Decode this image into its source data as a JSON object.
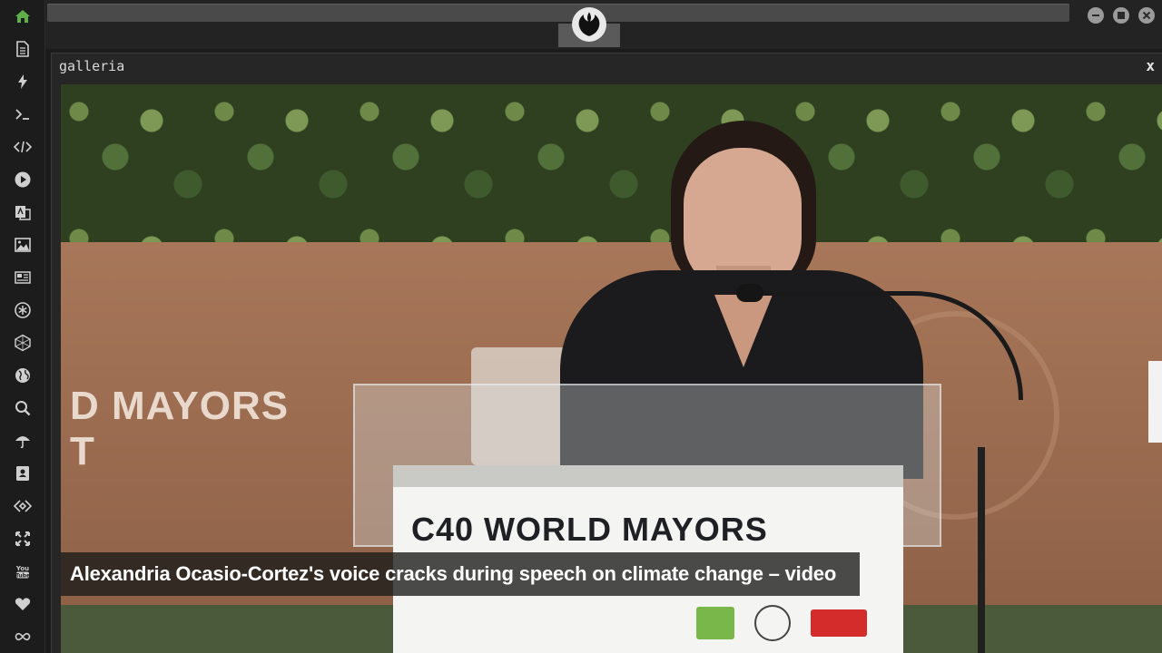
{
  "app": {
    "sidebar": {
      "items": [
        {
          "icon": "home-icon",
          "color": "#5fb04a"
        },
        {
          "icon": "document-icon"
        },
        {
          "icon": "lightning-icon"
        },
        {
          "icon": "terminal-icon"
        },
        {
          "icon": "code-icon"
        },
        {
          "icon": "play-icon"
        },
        {
          "icon": "translate-icon"
        },
        {
          "icon": "image-icon"
        },
        {
          "icon": "newspaper-icon"
        },
        {
          "icon": "asterisk-icon"
        },
        {
          "icon": "hexagon-icon"
        },
        {
          "icon": "globe-icon"
        },
        {
          "icon": "search-icon"
        },
        {
          "icon": "umbrella-icon"
        },
        {
          "icon": "contacts-icon"
        },
        {
          "icon": "diamond-code-icon"
        },
        {
          "icon": "expand-icon"
        },
        {
          "icon": "youtube-icon"
        },
        {
          "icon": "heart-icon"
        },
        {
          "icon": "infinity-icon"
        }
      ]
    },
    "topbar": {
      "logo_icon": "rebel-alliance-icon",
      "window_buttons": [
        "minimize-icon",
        "maximize-icon",
        "close-icon"
      ]
    }
  },
  "panel": {
    "title": "galleria",
    "close_label": "x"
  },
  "video": {
    "background_text_line1": "D MAYORS",
    "background_text_line2": "T",
    "podium_title": "C40 WORLD MAYORS",
    "caption": "Alexandria Ocasio-Cortez's voice cracks during speech on climate change – video"
  }
}
